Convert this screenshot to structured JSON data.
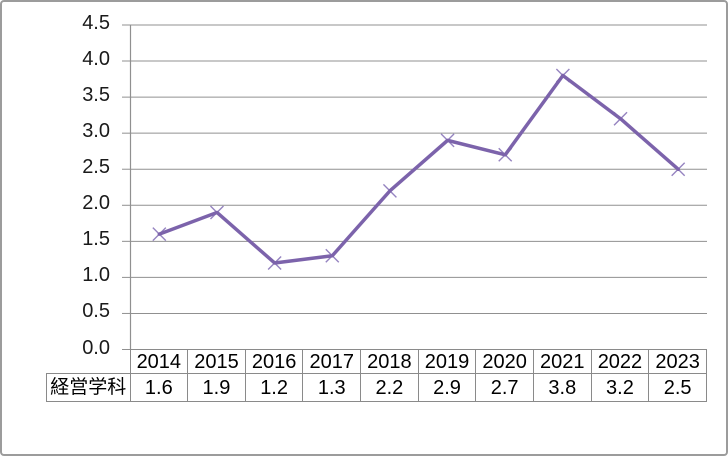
{
  "chart_data": {
    "type": "line",
    "title": "",
    "xlabel": "",
    "ylabel": "",
    "categories": [
      "2014",
      "2015",
      "2016",
      "2017",
      "2018",
      "2019",
      "2020",
      "2021",
      "2022",
      "2023"
    ],
    "series": [
      {
        "name": "経営学科",
        "values": [
          1.6,
          1.9,
          1.2,
          1.3,
          2.2,
          2.9,
          2.7,
          3.8,
          3.2,
          2.5
        ],
        "line_color": "#7c63ab",
        "marker": "x",
        "marker_color": "#9583c0"
      }
    ],
    "ylim": [
      0,
      4.5
    ],
    "ytick_step": 0.5,
    "ytick_labels": [
      "0.0",
      "0.5",
      "1.0",
      "1.5",
      "2.0",
      "2.5",
      "3.0",
      "3.5",
      "4.0",
      "4.5"
    ],
    "value_decimals": 1,
    "grid": true,
    "legend_position": "none",
    "data_table_shown": true
  },
  "colors": {
    "gridline": "#909090",
    "axis": "#909090",
    "tick": "#909090",
    "table_border": "#8a8a8a",
    "text": "#000000",
    "chart_border": "#9c9c9c",
    "background": "#ffffff"
  }
}
